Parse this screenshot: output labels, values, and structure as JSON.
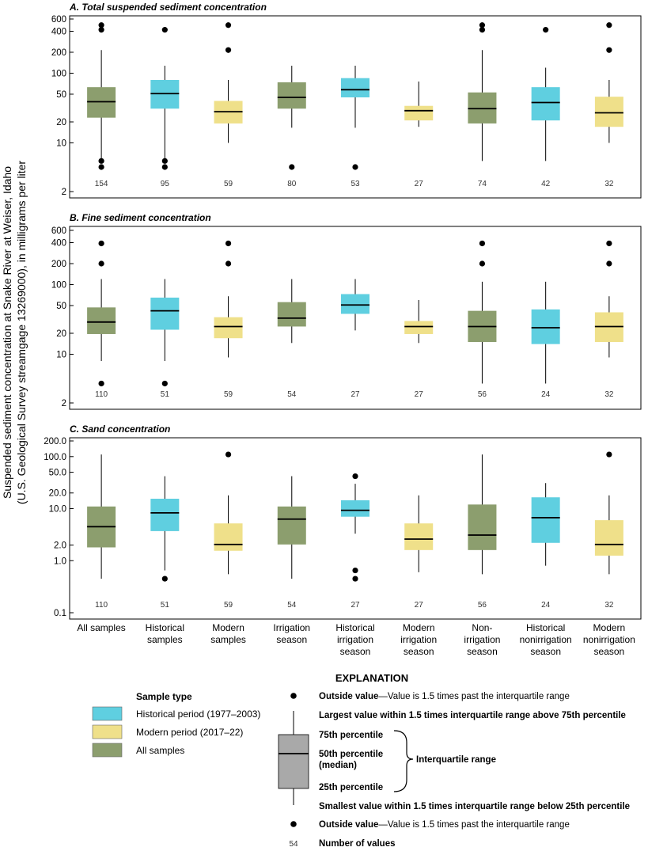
{
  "ylabel_line1": "Suspended sediment concentration at Snake River at Weiser, Idaho",
  "ylabel_line2": "(U.S. Geological Survey streamgage 13269000), in milligrams per liter",
  "categories": [
    [
      "All samples"
    ],
    [
      "Historical",
      "samples"
    ],
    [
      "Modern",
      "samples"
    ],
    [
      "Irrigation",
      "season"
    ],
    [
      "Historical",
      "irrigation",
      "season"
    ],
    [
      "Modern",
      "irrigation",
      "season"
    ],
    [
      "Non-",
      "irrigation",
      "season"
    ],
    [
      "Historical",
      "nonirrigation",
      "season"
    ],
    [
      "Modern",
      "nonirrigation",
      "season"
    ]
  ],
  "colors": {
    "historical": "#5fcfe0",
    "modern": "#efe08a",
    "all": "#8c9e6e",
    "explanation_box": "#a9a9a9"
  },
  "box_types": [
    "all",
    "historical",
    "modern",
    "all",
    "historical",
    "modern",
    "all",
    "historical",
    "modern"
  ],
  "chart_data": [
    {
      "type": "box",
      "title": "A. Total suspended sediment concentration",
      "scale": "log",
      "ylim": [
        2,
        600
      ],
      "yticks": [
        2,
        10,
        20,
        50,
        100,
        200,
        400,
        600
      ],
      "ytick_labels": [
        "2",
        "10",
        "20",
        "50",
        "100",
        "200",
        "400",
        "600"
      ],
      "boxes": [
        {
          "min": 5.5,
          "q1": 23,
          "median": 39,
          "q3": 63,
          "max": 215,
          "outliers": [
            4.5,
            5.5,
            420,
            490
          ],
          "n": 154
        },
        {
          "min": 5.5,
          "q1": 31,
          "median": 51,
          "q3": 80,
          "max": 128,
          "outliers": [
            4.5,
            5.5,
            420
          ],
          "n": 95
        },
        {
          "min": 10,
          "q1": 19,
          "median": 28,
          "q3": 40,
          "max": 80,
          "outliers": [
            215,
            490
          ],
          "n": 59
        },
        {
          "min": 16.5,
          "q1": 31,
          "median": 45,
          "q3": 74,
          "max": 128,
          "outliers": [
            4.5
          ],
          "n": 80
        },
        {
          "min": 16.5,
          "q1": 45,
          "median": 58,
          "q3": 85,
          "max": 128,
          "outliers": [
            4.5
          ],
          "n": 53
        },
        {
          "min": 17,
          "q1": 21,
          "median": 29,
          "q3": 34,
          "max": 76,
          "outliers": [],
          "n": 27
        },
        {
          "min": 5.5,
          "q1": 19,
          "median": 31,
          "q3": 53,
          "max": 215,
          "outliers": [
            420,
            490
          ],
          "n": 74
        },
        {
          "min": 5.5,
          "q1": 21,
          "median": 38,
          "q3": 63,
          "max": 120,
          "outliers": [
            420
          ],
          "n": 42
        },
        {
          "min": 10,
          "q1": 17,
          "median": 27,
          "q3": 46,
          "max": 80,
          "outliers": [
            215,
            490
          ],
          "n": 32
        }
      ]
    },
    {
      "type": "box",
      "title": "B. Fine sediment concentration",
      "scale": "log",
      "ylim": [
        2,
        600
      ],
      "yticks": [
        2,
        10,
        20,
        50,
        100,
        200,
        400,
        600
      ],
      "ytick_labels": [
        "2",
        "10",
        "20",
        "50",
        "100",
        "200",
        "400",
        "600"
      ],
      "boxes": [
        {
          "min": 8,
          "q1": 19.5,
          "median": 29,
          "q3": 47,
          "max": 120,
          "outliers": [
            3.8,
            200,
            390
          ],
          "n": 110
        },
        {
          "min": 8,
          "q1": 22.5,
          "median": 42,
          "q3": 65,
          "max": 120,
          "outliers": [
            3.8
          ],
          "n": 51
        },
        {
          "min": 9,
          "q1": 17,
          "median": 25,
          "q3": 34,
          "max": 68,
          "outliers": [
            200,
            390
          ],
          "n": 59
        },
        {
          "min": 14.5,
          "q1": 25,
          "median": 33,
          "q3": 56,
          "max": 120,
          "outliers": [],
          "n": 54
        },
        {
          "min": 22,
          "q1": 38,
          "median": 51,
          "q3": 73,
          "max": 120,
          "outliers": [],
          "n": 27
        },
        {
          "min": 14.5,
          "q1": 19.5,
          "median": 25,
          "q3": 30,
          "max": 60,
          "outliers": [],
          "n": 27
        },
        {
          "min": 3.8,
          "q1": 15,
          "median": 25,
          "q3": 42,
          "max": 110,
          "outliers": [
            200,
            390
          ],
          "n": 56
        },
        {
          "min": 3.8,
          "q1": 14,
          "median": 24,
          "q3": 44,
          "max": 110,
          "outliers": [],
          "n": 24
        },
        {
          "min": 9,
          "q1": 15,
          "median": 25,
          "q3": 40,
          "max": 68,
          "outliers": [
            200,
            390
          ],
          "n": 32
        }
      ]
    },
    {
      "type": "box",
      "title": "C. Sand concentration",
      "scale": "log",
      "ylim": [
        0.1,
        200
      ],
      "yticks": [
        0.1,
        1,
        2,
        10,
        20,
        50,
        100,
        200
      ],
      "ytick_labels": [
        "0.1",
        "1.0",
        "2.0",
        "10.0",
        "20.0",
        "50.0",
        "100.0",
        "200.0"
      ],
      "boxes": [
        {
          "min": 0.45,
          "q1": 1.8,
          "median": 4.5,
          "q3": 11,
          "max": 110,
          "outliers": [],
          "n": 110
        },
        {
          "min": 0.65,
          "q1": 3.7,
          "median": 8.3,
          "q3": 15.5,
          "max": 42,
          "outliers": [
            0.45
          ],
          "n": 51
        },
        {
          "min": 0.55,
          "q1": 1.55,
          "median": 2.05,
          "q3": 5.2,
          "max": 18,
          "outliers": [
            110
          ],
          "n": 59
        },
        {
          "min": 0.45,
          "q1": 2.05,
          "median": 6.3,
          "q3": 11,
          "max": 42,
          "outliers": [],
          "n": 54
        },
        {
          "min": 3.3,
          "q1": 7,
          "median": 9.3,
          "q3": 14.5,
          "max": 30,
          "outliers": [
            0.45,
            0.65,
            42
          ],
          "n": 27
        },
        {
          "min": 0.6,
          "q1": 1.6,
          "median": 2.6,
          "q3": 5.2,
          "max": 18,
          "outliers": [],
          "n": 27
        },
        {
          "min": 0.55,
          "q1": 1.6,
          "median": 3.1,
          "q3": 12,
          "max": 110,
          "outliers": [],
          "n": 56
        },
        {
          "min": 0.8,
          "q1": 2.2,
          "median": 6.7,
          "q3": 16.5,
          "max": 31,
          "outliers": [],
          "n": 24
        },
        {
          "min": 0.55,
          "q1": 1.25,
          "median": 2.05,
          "q3": 6,
          "max": 18,
          "outliers": [
            110
          ],
          "n": 32
        }
      ]
    }
  ],
  "legend": {
    "title": "Sample type",
    "items": [
      {
        "label": "Historical period (1977–2003)",
        "type": "historical"
      },
      {
        "label": "Modern period (2017–22)",
        "type": "modern"
      },
      {
        "label": "All samples",
        "type": "all"
      }
    ]
  },
  "explanation": {
    "title": "EXPLANATION",
    "outside_value_bold": "Outside value",
    "outside_value_text": "—Value is 1.5 times past the interquartile range",
    "largest_value": "Largest value within 1.5 times interquartile range above 75th percentile",
    "p75": "75th percentile",
    "p50_line1": "50th percentile",
    "p50_line2": "(median)",
    "p25": "25th percentile",
    "iqr": "Interquartile range",
    "smallest_value": "Smallest value within 1.5 times interquartile range below 25th percentile",
    "count_example": "54",
    "count_label": "Number of values"
  }
}
